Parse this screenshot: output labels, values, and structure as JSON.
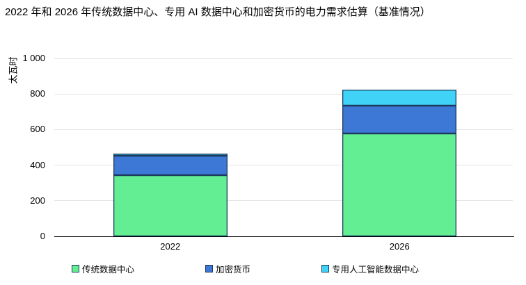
{
  "chart_data": {
    "type": "bar",
    "stacked": true,
    "title": "2022 年和 2026 年传统数据中心、专用 AI 数据中心和加密货币的电力需求估算（基准情况）",
    "ylabel": "太瓦时",
    "xlabel": "",
    "categories": [
      "2022",
      "2026"
    ],
    "series": [
      {
        "key": "traditional-data-centers",
        "name": "传统数据中心",
        "color": "#64ee94",
        "values": [
          345,
          580
        ]
      },
      {
        "key": "cryptocurrencies",
        "name": "加密货币",
        "color": "#3d78d6",
        "values": [
          110,
          155
        ]
      },
      {
        "key": "dedicated-ai-data-centers",
        "name": "专用人工智能数据中心",
        "color": "#41d2f7",
        "values": [
          10,
          90
        ]
      }
    ],
    "totals": [
      465,
      825
    ],
    "ylim": [
      0,
      1000
    ],
    "yticks": [
      0,
      200,
      400,
      600,
      800,
      1000
    ],
    "ytick_labels": [
      "0",
      "200",
      "400",
      "600",
      "800",
      "1 000"
    ],
    "grid": true,
    "legend_position": "bottom",
    "colors": {
      "bar_border": "#1b3a5c",
      "gridline": "#e4e4e4",
      "axis": "#000000",
      "text": "#000000",
      "background": "#ffffff"
    }
  }
}
